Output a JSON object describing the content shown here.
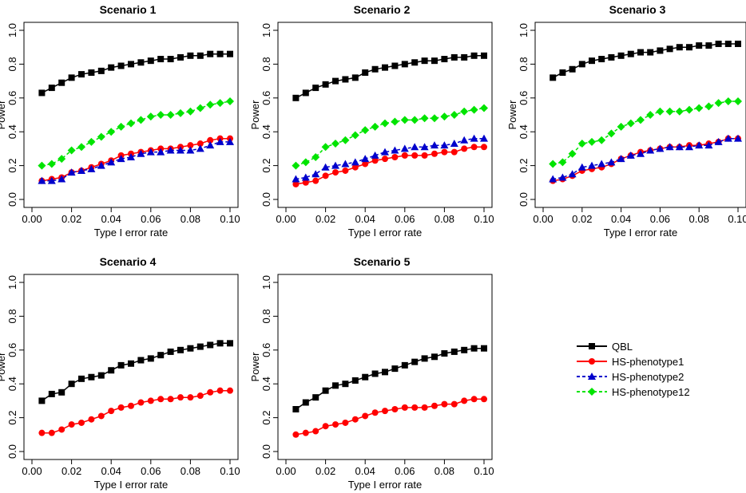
{
  "figure": {
    "legend": {
      "position": "right",
      "items": [
        {
          "label": "QBL",
          "color": "#000000",
          "marker": "square",
          "line": "solid"
        },
        {
          "label": "HS-phenotype1",
          "color": "#ff0000",
          "marker": "circle",
          "line": "solid"
        },
        {
          "label": "HS-phenotype2",
          "color": "#0000cc",
          "marker": "triangle",
          "line": "dashed"
        },
        {
          "label": "HS-phenotype12",
          "color": "#00e400",
          "marker": "diamond",
          "line": "dashed"
        }
      ]
    }
  },
  "chart_data": [
    {
      "type": "line",
      "title": "Scenario 1",
      "xlabel": "Type I error rate",
      "ylabel": "Power",
      "xlim": [
        0.0,
        0.1
      ],
      "ylim": [
        0.0,
        1.0
      ],
      "xticks": [
        "0.00",
        "0.02",
        "0.04",
        "0.06",
        "0.08",
        "0.10"
      ],
      "yticks": [
        "0.0",
        "0.2",
        "0.4",
        "0.6",
        "0.8",
        "1.0"
      ],
      "x": [
        0.005,
        0.01,
        0.015,
        0.02,
        0.025,
        0.03,
        0.035,
        0.04,
        0.045,
        0.05,
        0.055,
        0.06,
        0.065,
        0.07,
        0.075,
        0.08,
        0.085,
        0.09,
        0.095,
        0.1
      ],
      "series": [
        {
          "name": "QBL",
          "values": [
            0.63,
            0.66,
            0.69,
            0.72,
            0.74,
            0.75,
            0.76,
            0.78,
            0.79,
            0.8,
            0.81,
            0.82,
            0.83,
            0.83,
            0.84,
            0.85,
            0.85,
            0.86,
            0.86,
            0.86
          ]
        },
        {
          "name": "HS-phenotype1",
          "values": [
            0.11,
            0.12,
            0.13,
            0.16,
            0.17,
            0.19,
            0.21,
            0.23,
            0.26,
            0.27,
            0.28,
            0.29,
            0.3,
            0.3,
            0.31,
            0.32,
            0.33,
            0.35,
            0.36,
            0.36
          ]
        },
        {
          "name": "HS-phenotype2",
          "values": [
            0.11,
            0.11,
            0.12,
            0.16,
            0.17,
            0.18,
            0.2,
            0.22,
            0.24,
            0.25,
            0.27,
            0.28,
            0.28,
            0.29,
            0.29,
            0.29,
            0.3,
            0.32,
            0.34,
            0.34
          ]
        },
        {
          "name": "HS-phenotype12",
          "values": [
            0.2,
            0.21,
            0.24,
            0.29,
            0.31,
            0.34,
            0.37,
            0.4,
            0.43,
            0.45,
            0.47,
            0.49,
            0.5,
            0.5,
            0.51,
            0.52,
            0.54,
            0.56,
            0.57,
            0.58
          ]
        }
      ]
    },
    {
      "type": "line",
      "title": "Scenario 2",
      "xlabel": "Type I error rate",
      "ylabel": "Power",
      "xlim": [
        0.0,
        0.1
      ],
      "ylim": [
        0.0,
        1.0
      ],
      "xticks": [
        "0.00",
        "0.02",
        "0.04",
        "0.06",
        "0.08",
        "0.10"
      ],
      "yticks": [
        "0.0",
        "0.2",
        "0.4",
        "0.6",
        "0.8",
        "1.0"
      ],
      "x": [
        0.005,
        0.01,
        0.015,
        0.02,
        0.025,
        0.03,
        0.035,
        0.04,
        0.045,
        0.05,
        0.055,
        0.06,
        0.065,
        0.07,
        0.075,
        0.08,
        0.085,
        0.09,
        0.095,
        0.1
      ],
      "series": [
        {
          "name": "QBL",
          "values": [
            0.6,
            0.63,
            0.66,
            0.68,
            0.7,
            0.71,
            0.72,
            0.75,
            0.77,
            0.78,
            0.79,
            0.8,
            0.81,
            0.82,
            0.82,
            0.83,
            0.84,
            0.84,
            0.85,
            0.85
          ]
        },
        {
          "name": "HS-phenotype1",
          "values": [
            0.09,
            0.1,
            0.11,
            0.14,
            0.16,
            0.17,
            0.19,
            0.21,
            0.23,
            0.24,
            0.25,
            0.26,
            0.26,
            0.26,
            0.27,
            0.28,
            0.28,
            0.3,
            0.31,
            0.31
          ]
        },
        {
          "name": "HS-phenotype2",
          "values": [
            0.12,
            0.13,
            0.15,
            0.19,
            0.2,
            0.21,
            0.22,
            0.24,
            0.26,
            0.28,
            0.29,
            0.3,
            0.31,
            0.31,
            0.32,
            0.32,
            0.33,
            0.35,
            0.36,
            0.36
          ]
        },
        {
          "name": "HS-phenotype12",
          "values": [
            0.2,
            0.22,
            0.25,
            0.31,
            0.33,
            0.35,
            0.38,
            0.41,
            0.43,
            0.45,
            0.46,
            0.47,
            0.47,
            0.48,
            0.48,
            0.49,
            0.5,
            0.52,
            0.53,
            0.54
          ]
        }
      ]
    },
    {
      "type": "line",
      "title": "Scenario 3",
      "xlabel": "Type I error rate",
      "ylabel": "Power",
      "xlim": [
        0.0,
        0.1
      ],
      "ylim": [
        0.0,
        1.0
      ],
      "xticks": [
        "0.00",
        "0.02",
        "0.04",
        "0.06",
        "0.08",
        "0.10"
      ],
      "yticks": [
        "0.0",
        "0.2",
        "0.4",
        "0.6",
        "0.8",
        "1.0"
      ],
      "x": [
        0.005,
        0.01,
        0.015,
        0.02,
        0.025,
        0.03,
        0.035,
        0.04,
        0.045,
        0.05,
        0.055,
        0.06,
        0.065,
        0.07,
        0.075,
        0.08,
        0.085,
        0.09,
        0.095,
        0.1
      ],
      "series": [
        {
          "name": "QBL",
          "values": [
            0.72,
            0.75,
            0.77,
            0.8,
            0.82,
            0.83,
            0.84,
            0.85,
            0.86,
            0.87,
            0.87,
            0.88,
            0.89,
            0.9,
            0.9,
            0.91,
            0.91,
            0.92,
            0.92,
            0.92
          ]
        },
        {
          "name": "HS-phenotype1",
          "values": [
            0.11,
            0.12,
            0.14,
            0.17,
            0.18,
            0.19,
            0.21,
            0.24,
            0.26,
            0.28,
            0.29,
            0.3,
            0.31,
            0.31,
            0.32,
            0.32,
            0.33,
            0.34,
            0.36,
            0.36
          ]
        },
        {
          "name": "HS-phenotype2",
          "values": [
            0.12,
            0.13,
            0.15,
            0.19,
            0.2,
            0.21,
            0.22,
            0.24,
            0.26,
            0.27,
            0.29,
            0.3,
            0.31,
            0.31,
            0.31,
            0.32,
            0.32,
            0.34,
            0.36,
            0.36
          ]
        },
        {
          "name": "HS-phenotype12",
          "values": [
            0.21,
            0.22,
            0.27,
            0.33,
            0.34,
            0.35,
            0.39,
            0.43,
            0.45,
            0.47,
            0.5,
            0.52,
            0.52,
            0.52,
            0.53,
            0.54,
            0.55,
            0.57,
            0.58,
            0.58
          ]
        }
      ]
    },
    {
      "type": "line",
      "title": "Scenario 4",
      "xlabel": "Type I error rate",
      "ylabel": "Power",
      "xlim": [
        0.0,
        0.1
      ],
      "ylim": [
        0.0,
        1.0
      ],
      "xticks": [
        "0.00",
        "0.02",
        "0.04",
        "0.06",
        "0.08",
        "0.10"
      ],
      "yticks": [
        "0.0",
        "0.2",
        "0.4",
        "0.6",
        "0.8",
        "1.0"
      ],
      "x": [
        0.005,
        0.01,
        0.015,
        0.02,
        0.025,
        0.03,
        0.035,
        0.04,
        0.045,
        0.05,
        0.055,
        0.06,
        0.065,
        0.07,
        0.075,
        0.08,
        0.085,
        0.09,
        0.095,
        0.1
      ],
      "series": [
        {
          "name": "QBL",
          "values": [
            0.3,
            0.34,
            0.35,
            0.4,
            0.43,
            0.44,
            0.45,
            0.48,
            0.51,
            0.52,
            0.54,
            0.55,
            0.57,
            0.59,
            0.6,
            0.61,
            0.62,
            0.63,
            0.64,
            0.64
          ]
        },
        {
          "name": "HS-phenotype1",
          "values": [
            0.11,
            0.11,
            0.13,
            0.16,
            0.17,
            0.19,
            0.21,
            0.24,
            0.26,
            0.27,
            0.29,
            0.3,
            0.31,
            0.31,
            0.32,
            0.32,
            0.33,
            0.35,
            0.36,
            0.36
          ]
        }
      ]
    },
    {
      "type": "line",
      "title": "Scenario 5",
      "xlabel": "Type I error rate",
      "ylabel": "Power",
      "xlim": [
        0.0,
        0.1
      ],
      "ylim": [
        0.0,
        1.0
      ],
      "xticks": [
        "0.00",
        "0.02",
        "0.04",
        "0.06",
        "0.08",
        "0.10"
      ],
      "yticks": [
        "0.0",
        "0.2",
        "0.4",
        "0.6",
        "0.8",
        "1.0"
      ],
      "x": [
        0.005,
        0.01,
        0.015,
        0.02,
        0.025,
        0.03,
        0.035,
        0.04,
        0.045,
        0.05,
        0.055,
        0.06,
        0.065,
        0.07,
        0.075,
        0.08,
        0.085,
        0.09,
        0.095,
        0.1
      ],
      "series": [
        {
          "name": "QBL",
          "values": [
            0.25,
            0.29,
            0.32,
            0.36,
            0.39,
            0.4,
            0.42,
            0.44,
            0.46,
            0.47,
            0.49,
            0.51,
            0.53,
            0.55,
            0.56,
            0.58,
            0.59,
            0.6,
            0.61,
            0.61
          ]
        },
        {
          "name": "HS-phenotype1",
          "values": [
            0.1,
            0.11,
            0.12,
            0.15,
            0.16,
            0.17,
            0.19,
            0.21,
            0.23,
            0.24,
            0.25,
            0.26,
            0.26,
            0.26,
            0.27,
            0.28,
            0.28,
            0.3,
            0.31,
            0.31
          ]
        }
      ]
    }
  ]
}
